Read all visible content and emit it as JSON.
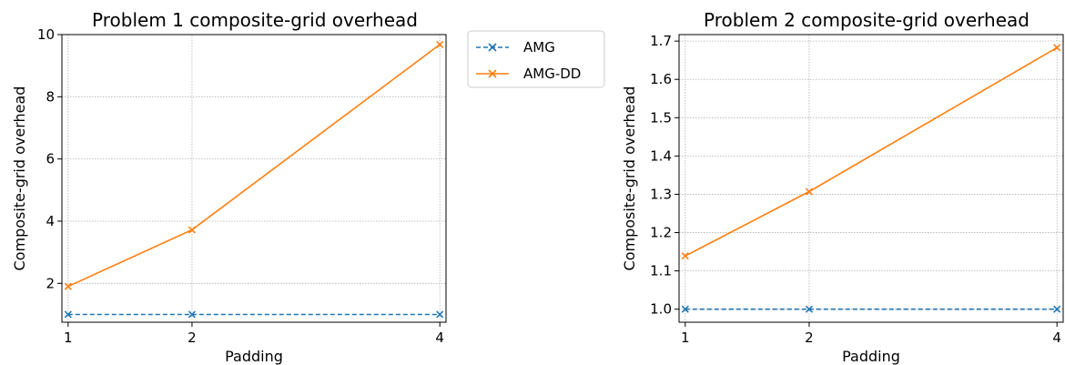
{
  "chart_data": [
    {
      "type": "line",
      "title": "Problem 1 composite-grid overhead",
      "xlabel": "Padding",
      "ylabel": "Composite-grid overhead",
      "categories": [
        "1",
        "2",
        "4"
      ],
      "ylim": [
        0.75,
        10.0
      ],
      "yticks": [
        "2",
        "4",
        "6",
        "8",
        "10"
      ],
      "grid": true,
      "legend": "outside-top-right",
      "series": [
        {
          "name": "AMG",
          "values": [
            1.0,
            1.0,
            1.0
          ],
          "color": "#1f77b4",
          "linestyle": "dashed",
          "marker": "x"
        },
        {
          "name": "AMG-DD",
          "values": [
            1.9,
            3.72,
            9.68
          ],
          "color": "#ff7f0e",
          "linestyle": "solid",
          "marker": "x"
        }
      ]
    },
    {
      "type": "line",
      "title": "Problem 2 composite-grid overhead",
      "xlabel": "Padding",
      "ylabel": "Composite-grid overhead",
      "categories": [
        "1",
        "2",
        "4"
      ],
      "ylim": [
        0.966,
        1.717
      ],
      "yticks": [
        "1.0",
        "1.1",
        "1.2",
        "1.3",
        "1.4",
        "1.5",
        "1.6",
        "1.7"
      ],
      "grid": true,
      "legend": "none",
      "series": [
        {
          "name": "AMG",
          "values": [
            1.0,
            1.0,
            1.0
          ],
          "color": "#1f77b4",
          "linestyle": "dashed",
          "marker": "x"
        },
        {
          "name": "AMG-DD",
          "values": [
            1.139,
            1.307,
            1.683
          ],
          "color": "#ff7f0e",
          "linestyle": "solid",
          "marker": "x"
        }
      ]
    }
  ]
}
